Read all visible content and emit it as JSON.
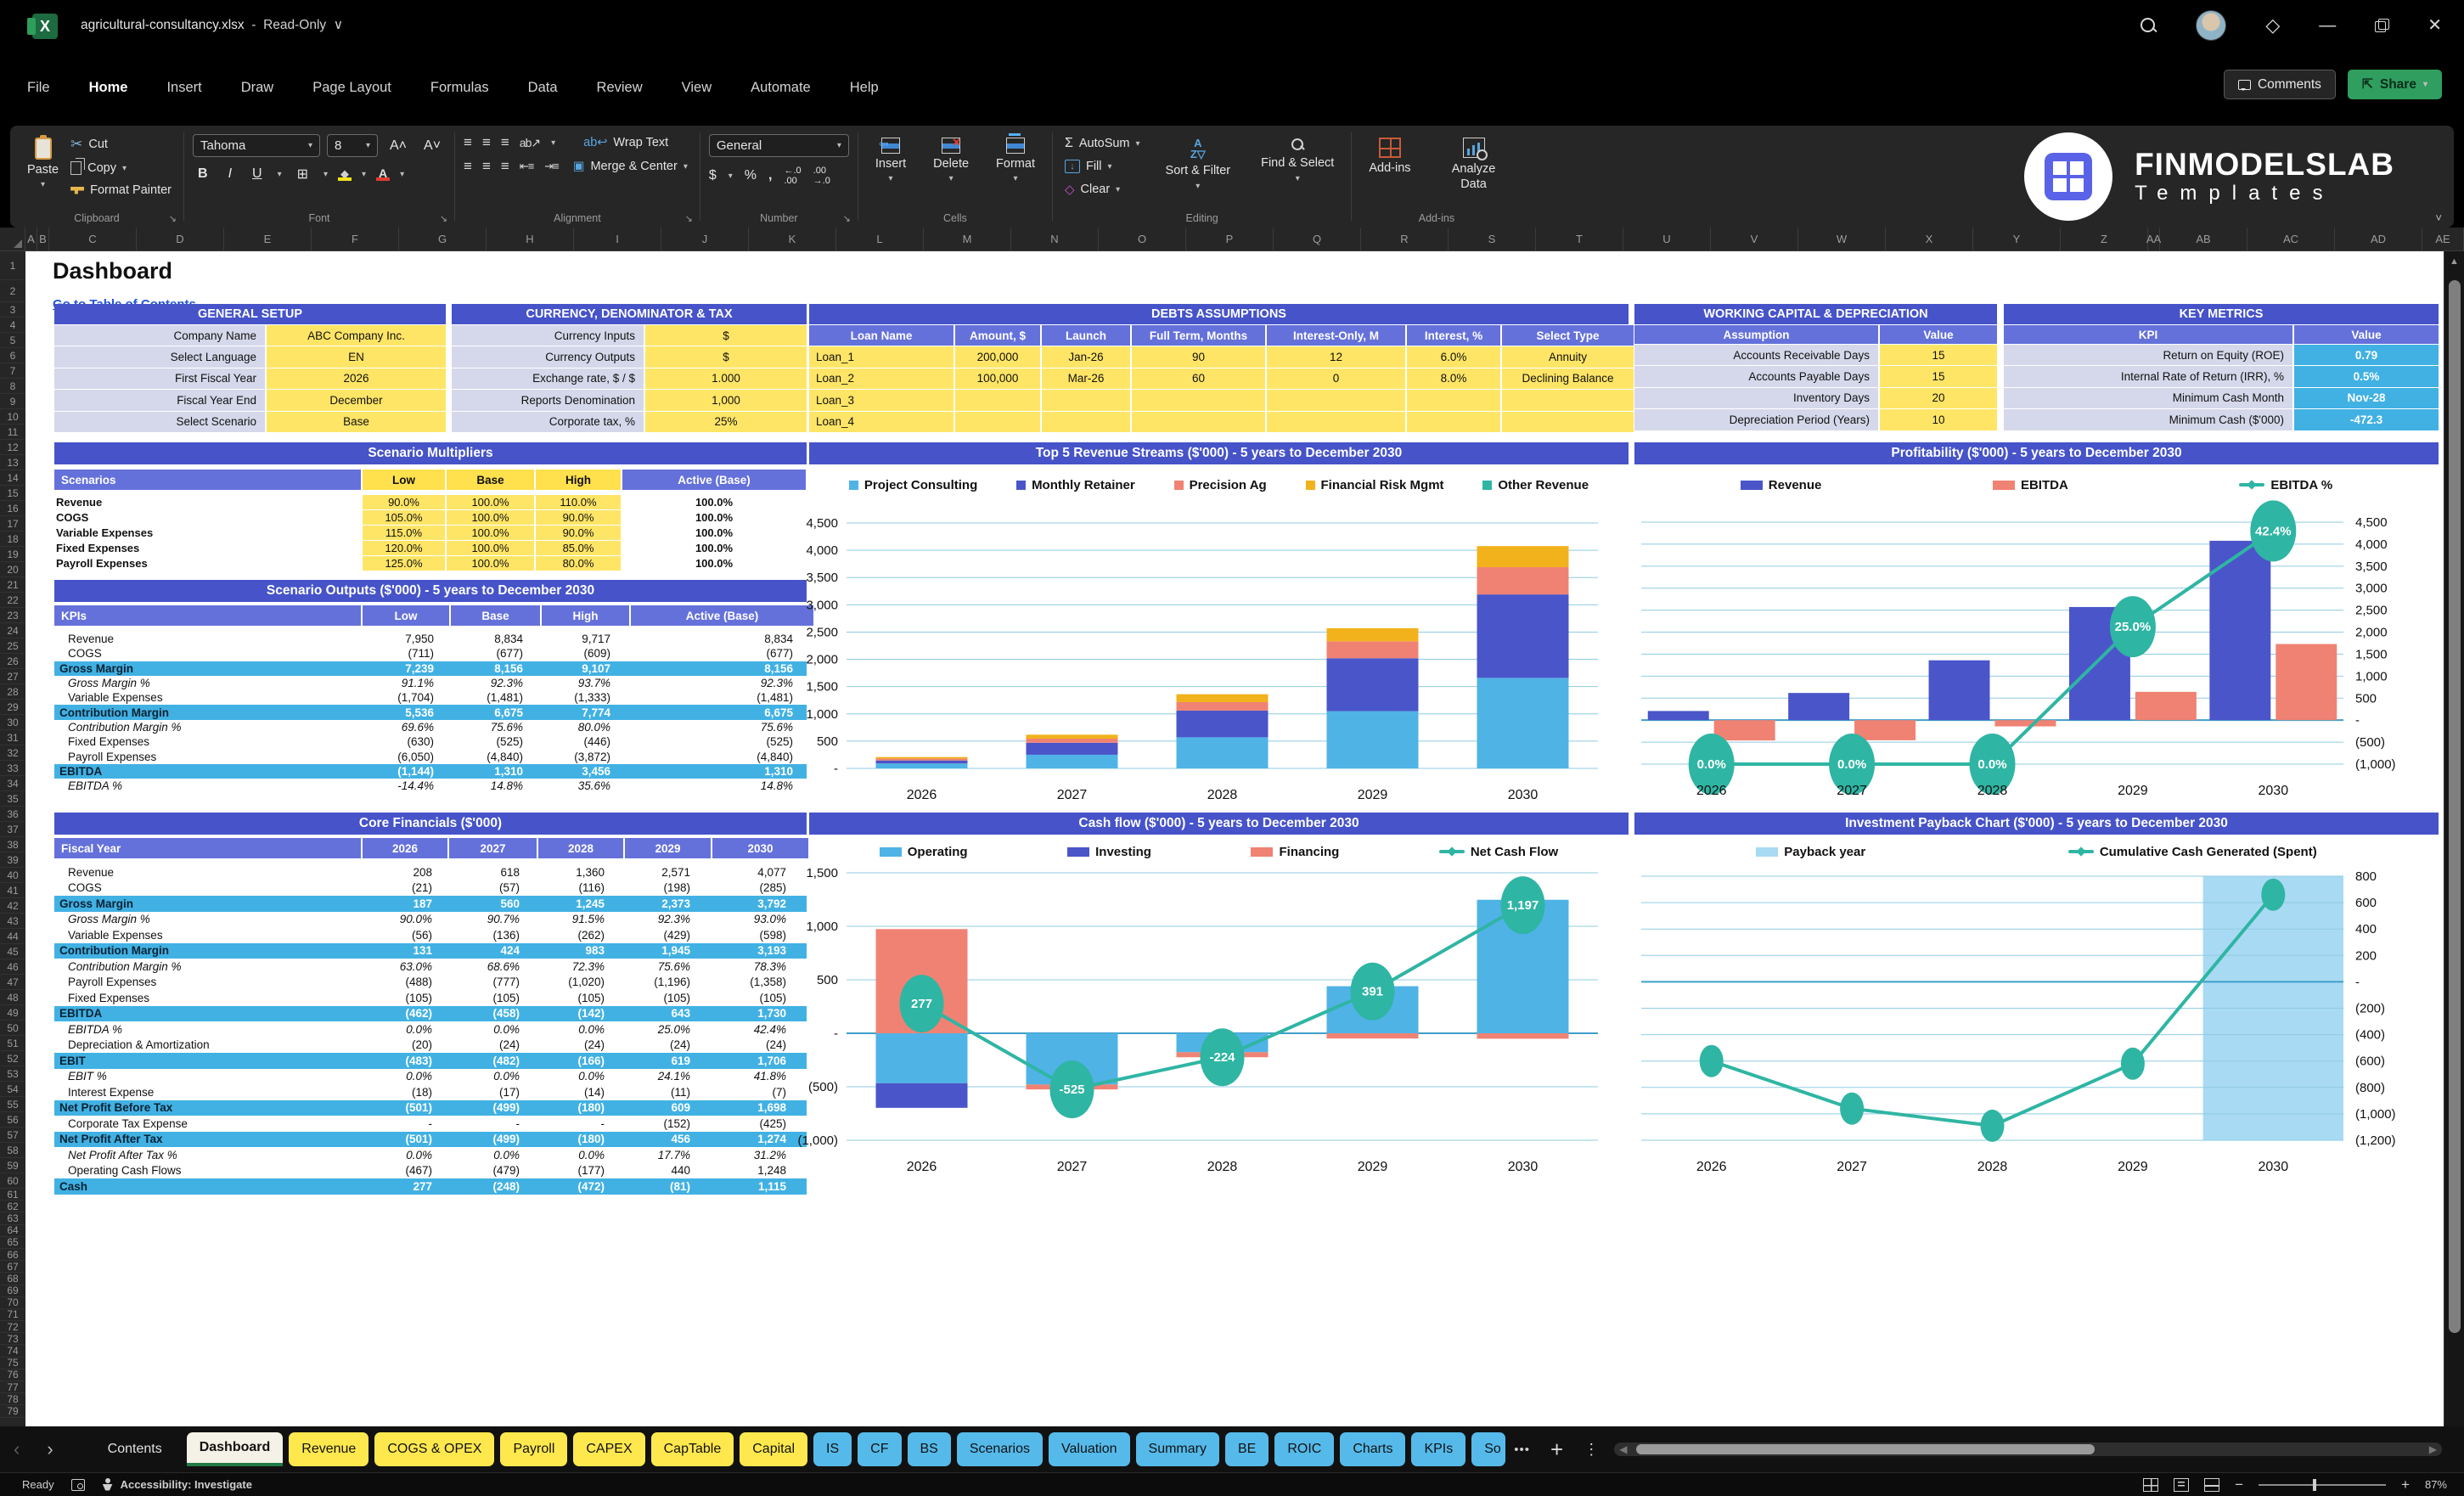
{
  "titlebar": {
    "filename": "agricultural-consultancy.xlsx",
    "mode": "Read-Only"
  },
  "menu": {
    "items": [
      "File",
      "Home",
      "Insert",
      "Draw",
      "Page Layout",
      "Formulas",
      "Data",
      "Review",
      "View",
      "Automate",
      "Help"
    ],
    "active": "Home"
  },
  "actions": {
    "comments": "Comments",
    "share": "Share"
  },
  "ribbon": {
    "clipboard": {
      "label": "Clipboard",
      "paste": "Paste",
      "cut": "Cut",
      "copy": "Copy",
      "format_painter": "Format Painter"
    },
    "font": {
      "label": "Font",
      "name": "Tahoma",
      "size": "8"
    },
    "alignment": {
      "label": "Alignment",
      "wrap_text": "Wrap Text",
      "merge_center": "Merge & Center"
    },
    "number": {
      "label": "Number",
      "format": "General"
    },
    "cells": {
      "label": "Cells",
      "insert": "Insert",
      "delete": "Delete",
      "format": "Format"
    },
    "editing": {
      "label": "Editing",
      "autosum": "AutoSum",
      "fill": "Fill",
      "clear": "Clear",
      "sort_filter": "Sort & Filter",
      "find_select": "Find & Select"
    },
    "addins": {
      "label": "Add-ins",
      "addins": "Add-ins",
      "analyze": "Analyze Data"
    }
  },
  "brand": {
    "name": "FINMODELSLAB",
    "sub": "Templates"
  },
  "sheet": {
    "title": "Dashboard",
    "link": "Go to Table of Contents",
    "row_count": 79,
    "columns": [
      "A",
      "B",
      "C",
      "D",
      "E",
      "F",
      "G",
      "H",
      "I",
      "J",
      "K",
      "L",
      "M",
      "N",
      "O",
      "P",
      "Q",
      "R",
      "S",
      "T",
      "U",
      "V",
      "W",
      "X",
      "Y",
      "Z",
      "AA",
      "AB",
      "AC",
      "AD",
      "AE"
    ]
  },
  "colors": {
    "accent_blue": "#4653C9",
    "header_blue": "#6571DA",
    "yellow": "#FFE566",
    "cyan": "#41B1E3",
    "teal": "#2FB5A3",
    "salmon": "#F08273",
    "gold": "#F2B21C",
    "light_blue": "#4FB3E6",
    "tab_yellow": "#FFE84D",
    "tab_blue": "#55BAEA",
    "share_green": "#2f9e5f"
  },
  "tables": {
    "general_setup": {
      "title": "GENERAL SETUP",
      "rows": [
        [
          "Company Name",
          "ABC Company Inc."
        ],
        [
          "Select Language",
          "EN"
        ],
        [
          "First Fiscal Year",
          "2026"
        ],
        [
          "Fiscal Year End",
          "December"
        ],
        [
          "Select Scenario",
          "Base"
        ]
      ]
    },
    "currency": {
      "title": "CURRENCY, DENOMINATOR & TAX",
      "rows": [
        [
          "Currency Inputs",
          "$"
        ],
        [
          "Currency Outputs",
          "$"
        ],
        [
          "Exchange rate, $ / $",
          "1.000"
        ],
        [
          "Reports Denomination",
          "1,000"
        ],
        [
          "Corporate tax, %",
          "25%"
        ]
      ]
    },
    "debts": {
      "title": "DEBTS ASSUMPTIONS",
      "headers": [
        "Loan Name",
        "Amount, $",
        "Launch",
        "Full Term, Months",
        "Interest-Only, M",
        "Interest, %",
        "Select Type"
      ],
      "rows": [
        [
          "Loan_1",
          "200,000",
          "Jan-26",
          "90",
          "12",
          "6.0%",
          "Annuity"
        ],
        [
          "Loan_2",
          "100,000",
          "Mar-26",
          "60",
          "0",
          "8.0%",
          "Declining Balance"
        ],
        [
          "Loan_3",
          "",
          "",
          "",
          "",
          "",
          ""
        ],
        [
          "Loan_4",
          "",
          "",
          "",
          "",
          "",
          ""
        ]
      ]
    },
    "working_capital": {
      "title": "WORKING CAPITAL & DEPRECIATION",
      "headers": [
        "Assumption",
        "Value"
      ],
      "rows": [
        [
          "Accounts Receivable Days",
          "15"
        ],
        [
          "Accounts Payable Days",
          "15"
        ],
        [
          "Inventory Days",
          "20"
        ],
        [
          "Depreciation Period (Years)",
          "10"
        ]
      ]
    },
    "key_metrics": {
      "title": "KEY METRICS",
      "headers": [
        "KPI",
        "Value"
      ],
      "rows": [
        [
          "Return on Equity (ROE)",
          "0.79"
        ],
        [
          "Internal Rate of Return (IRR), %",
          "0.5%"
        ],
        [
          "Minimum Cash Month",
          "Nov-28"
        ],
        [
          "Minimum Cash ($'000)",
          "-472.3"
        ]
      ]
    },
    "scenario_multipliers": {
      "title": "Scenario Multipliers",
      "headers": [
        "Scenarios",
        "Low",
        "Base",
        "High",
        "Active (Base)"
      ],
      "rows": [
        [
          "Revenue",
          "90.0%",
          "100.0%",
          "110.0%",
          "100.0%"
        ],
        [
          "COGS",
          "105.0%",
          "100.0%",
          "90.0%",
          "100.0%"
        ],
        [
          "Variable Expenses",
          "115.0%",
          "100.0%",
          "90.0%",
          "100.0%"
        ],
        [
          "Fixed Expenses",
          "120.0%",
          "100.0%",
          "85.0%",
          "100.0%"
        ],
        [
          "Payroll Expenses",
          "125.0%",
          "100.0%",
          "80.0%",
          "100.0%"
        ]
      ]
    },
    "scenario_outputs": {
      "title": "Scenario Outputs ($'000) - 5 years to December 2030",
      "headers": [
        "KPIs",
        "Low",
        "Base",
        "High",
        "Active (Base)"
      ],
      "rows": [
        {
          "label": "Revenue",
          "values": [
            "7,950",
            "8,834",
            "9,717",
            "8,834"
          ],
          "style": "plain"
        },
        {
          "label": "COGS",
          "values": [
            "(711)",
            "(677)",
            "(609)",
            "(677)"
          ],
          "style": "plain"
        },
        {
          "label": "Gross Margin",
          "values": [
            "7,239",
            "8,156",
            "9,107",
            "8,156"
          ],
          "style": "highlight"
        },
        {
          "label": "Gross Margin %",
          "values": [
            "91.1%",
            "92.3%",
            "93.7%",
            "92.3%"
          ],
          "style": "italic"
        },
        {
          "label": "Variable Expenses",
          "values": [
            "(1,704)",
            "(1,481)",
            "(1,333)",
            "(1,481)"
          ],
          "style": "plain"
        },
        {
          "label": "Contribution Margin",
          "values": [
            "5,536",
            "6,675",
            "7,774",
            "6,675"
          ],
          "style": "highlight"
        },
        {
          "label": "Contribution Margin %",
          "values": [
            "69.6%",
            "75.6%",
            "80.0%",
            "75.6%"
          ],
          "style": "italic"
        },
        {
          "label": "Fixed Expenses",
          "values": [
            "(630)",
            "(525)",
            "(446)",
            "(525)"
          ],
          "style": "plain"
        },
        {
          "label": "Payroll Expenses",
          "values": [
            "(6,050)",
            "(4,840)",
            "(3,872)",
            "(4,840)"
          ],
          "style": "plain"
        },
        {
          "label": "EBITDA",
          "values": [
            "(1,144)",
            "1,310",
            "3,456",
            "1,310"
          ],
          "style": "highlight"
        },
        {
          "label": "EBITDA %",
          "values": [
            "-14.4%",
            "14.8%",
            "35.6%",
            "14.8%"
          ],
          "style": "italic"
        }
      ]
    },
    "core_financials": {
      "title": "Core Financials ($'000)",
      "headers": [
        "Fiscal Year",
        "2026",
        "2027",
        "2028",
        "2029",
        "2030"
      ],
      "rows": [
        {
          "label": "Revenue",
          "values": [
            "208",
            "618",
            "1,360",
            "2,571",
            "4,077"
          ],
          "style": "plain"
        },
        {
          "label": "COGS",
          "values": [
            "(21)",
            "(57)",
            "(116)",
            "(198)",
            "(285)"
          ],
          "style": "plain"
        },
        {
          "label": "Gross Margin",
          "values": [
            "187",
            "560",
            "1,245",
            "2,373",
            "3,792"
          ],
          "style": "highlight"
        },
        {
          "label": "Gross Margin %",
          "values": [
            "90.0%",
            "90.7%",
            "91.5%",
            "92.3%",
            "93.0%"
          ],
          "style": "italic"
        },
        {
          "label": "Variable Expenses",
          "values": [
            "(56)",
            "(136)",
            "(262)",
            "(429)",
            "(598)"
          ],
          "style": "plain"
        },
        {
          "label": "Contribution Margin",
          "values": [
            "131",
            "424",
            "983",
            "1,945",
            "3,193"
          ],
          "style": "highlight"
        },
        {
          "label": "Contribution Margin %",
          "values": [
            "63.0%",
            "68.6%",
            "72.3%",
            "75.6%",
            "78.3%"
          ],
          "style": "italic"
        },
        {
          "label": "Payroll Expenses",
          "values": [
            "(488)",
            "(777)",
            "(1,020)",
            "(1,196)",
            "(1,358)"
          ],
          "style": "plain"
        },
        {
          "label": "Fixed Expenses",
          "values": [
            "(105)",
            "(105)",
            "(105)",
            "(105)",
            "(105)"
          ],
          "style": "plain"
        },
        {
          "label": "EBITDA",
          "values": [
            "(462)",
            "(458)",
            "(142)",
            "643",
            "1,730"
          ],
          "style": "highlight"
        },
        {
          "label": "EBITDA %",
          "values": [
            "0.0%",
            "0.0%",
            "0.0%",
            "25.0%",
            "42.4%"
          ],
          "style": "italic"
        },
        {
          "label": "Depreciation & Amortization",
          "values": [
            "(20)",
            "(24)",
            "(24)",
            "(24)",
            "(24)"
          ],
          "style": "plain"
        },
        {
          "label": "EBIT",
          "values": [
            "(483)",
            "(482)",
            "(166)",
            "619",
            "1,706"
          ],
          "style": "highlight"
        },
        {
          "label": "EBIT %",
          "values": [
            "0.0%",
            "0.0%",
            "0.0%",
            "24.1%",
            "41.8%"
          ],
          "style": "italic"
        },
        {
          "label": "Interest Expense",
          "values": [
            "(18)",
            "(17)",
            "(14)",
            "(11)",
            "(7)"
          ],
          "style": "plain"
        },
        {
          "label": "Net Profit Before Tax",
          "values": [
            "(501)",
            "(499)",
            "(180)",
            "609",
            "1,698"
          ],
          "style": "highlight"
        },
        {
          "label": "Corporate Tax Expense",
          "values": [
            "-",
            "-",
            "-",
            "(152)",
            "(425)"
          ],
          "style": "plain"
        },
        {
          "label": "Net Profit After Tax",
          "values": [
            "(501)",
            "(499)",
            "(180)",
            "456",
            "1,274"
          ],
          "style": "highlight"
        },
        {
          "label": "Net Profit After Tax %",
          "values": [
            "0.0%",
            "0.0%",
            "0.0%",
            "17.7%",
            "31.2%"
          ],
          "style": "italic"
        },
        {
          "label": "Operating Cash Flows",
          "values": [
            "(467)",
            "(479)",
            "(177)",
            "440",
            "1,248"
          ],
          "style": "plain"
        },
        {
          "label": "Cash",
          "values": [
            "277",
            "(248)",
            "(472)",
            "(81)",
            "1,115"
          ],
          "style": "highlight"
        }
      ]
    }
  },
  "chart_data": [
    {
      "id": "revenue_streams",
      "type": "bar",
      "title": "Top 5 Revenue Streams ($'000) - 5 years to December 2030",
      "categories": [
        "2026",
        "2027",
        "2028",
        "2029",
        "2030"
      ],
      "series": [
        {
          "name": "Project Consulting",
          "color": "#4FB3E6",
          "values": [
            90,
            250,
            570,
            1050,
            1660
          ]
        },
        {
          "name": "Monthly Retainer",
          "color": "#4A55C9",
          "values": [
            55,
            220,
            490,
            970,
            1530
          ]
        },
        {
          "name": "Precision Ag",
          "color": "#F08273",
          "values": [
            35,
            75,
            155,
            310,
            500
          ]
        },
        {
          "name": "Financial Risk Mgmt",
          "color": "#F2B21C",
          "values": [
            28,
            73,
            145,
            241,
            387
          ]
        },
        {
          "name": "Other Revenue",
          "color": "#2FB5A3",
          "values": [
            0,
            0,
            0,
            0,
            0
          ]
        }
      ],
      "stacked": true,
      "ylim": [
        0,
        4500
      ],
      "axis_side": "left",
      "yticklabels": [
        "4,500",
        "4,000",
        "3,500",
        "3,000",
        "2,500",
        "2,000",
        "1,500",
        "1,000",
        "500",
        "-"
      ]
    },
    {
      "id": "profitability",
      "type": "bar",
      "title": "Profitability ($'000) - 5 years to December 2030",
      "categories": [
        "2026",
        "2027",
        "2028",
        "2029",
        "2030"
      ],
      "series": [
        {
          "name": "Revenue",
          "color": "#4A55C9",
          "values": [
            208,
            618,
            1360,
            2571,
            4077
          ]
        },
        {
          "name": "EBITDA",
          "color": "#F08273",
          "values": [
            -462,
            -458,
            -142,
            643,
            1730
          ]
        }
      ],
      "stacked": false,
      "ylim": [
        -1000,
        4500
      ],
      "axis_side": "right",
      "yticklabels": [
        "4,500",
        "4,000",
        "3,500",
        "3,000",
        "2,500",
        "2,000",
        "1,500",
        "1,000",
        "500",
        "-",
        "(500)",
        "(1,000)"
      ],
      "line": {
        "name": "EBITDA %",
        "color": "#2FB5A3",
        "values": [
          0,
          0,
          0,
          25,
          42.4
        ],
        "labels": [
          "0.0%",
          "0.0%",
          "0.0%",
          "25.0%",
          "42.4%"
        ],
        "axis": [
          0,
          44
        ]
      }
    },
    {
      "id": "cashflow",
      "type": "bar",
      "title": "Cash flow ($'000) - 5 years to December 2030",
      "categories": [
        "2026",
        "2027",
        "2028",
        "2029",
        "2030"
      ],
      "series": [
        {
          "name": "Operating",
          "color": "#4FB3E6",
          "values": [
            -467,
            -479,
            -177,
            440,
            1248
          ]
        },
        {
          "name": "Investing",
          "color": "#4A55C9",
          "values": [
            -230,
            0,
            0,
            0,
            0
          ]
        },
        {
          "name": "Financing",
          "color": "#F08273",
          "values": [
            974,
            -46,
            -47,
            -49,
            -51
          ]
        }
      ],
      "stacked": true,
      "ylim": [
        -1000,
        1500
      ],
      "axis_side": "left",
      "yticklabels": [
        "1,500",
        "1,000",
        "500",
        "-",
        "(500)",
        "(1,000)"
      ],
      "line": {
        "name": "Net Cash Flow",
        "color": "#2FB5A3",
        "values": [
          277,
          -525,
          -224,
          391,
          1197
        ],
        "labels": [
          "277",
          "-525",
          "-224",
          "391",
          "1,197"
        ]
      }
    },
    {
      "id": "payback",
      "type": "line",
      "title": "Investment Payback Chart ($'000) - 5 years to December 2030",
      "categories": [
        "2026",
        "2027",
        "2028",
        "2029",
        "2030"
      ],
      "band": {
        "name": "Payback year",
        "color": "#A9DAF3"
      },
      "line": {
        "name": "Cumulative Cash Generated (Spent)",
        "color": "#2FB5A3",
        "values": [
          -600,
          -960,
          -1090,
          -620,
          660
        ],
        "labels": []
      },
      "ylim": [
        -1200,
        800
      ],
      "axis_side": "right",
      "yticklabels": [
        "800",
        "600",
        "400",
        "200",
        "-",
        "(200)",
        "(400)",
        "(600)",
        "(800)",
        "(1,000)",
        "(1,200)"
      ]
    }
  ],
  "tabs": {
    "items": [
      {
        "label": "Contents",
        "type": "plain"
      },
      {
        "label": "Dashboard",
        "type": "active"
      },
      {
        "label": "Revenue",
        "type": "yellow"
      },
      {
        "label": "COGS & OPEX",
        "type": "yellow"
      },
      {
        "label": "Payroll",
        "type": "yellow"
      },
      {
        "label": "CAPEX",
        "type": "yellow"
      },
      {
        "label": "CapTable",
        "type": "yellow"
      },
      {
        "label": "Capital",
        "type": "yellow"
      },
      {
        "label": "IS",
        "type": "blue"
      },
      {
        "label": "CF",
        "type": "blue"
      },
      {
        "label": "BS",
        "type": "blue"
      },
      {
        "label": "Scenarios",
        "type": "blue"
      },
      {
        "label": "Valuation",
        "type": "blue"
      },
      {
        "label": "Summary",
        "type": "blue"
      },
      {
        "label": "BE",
        "type": "blue"
      },
      {
        "label": "ROIC",
        "type": "blue"
      },
      {
        "label": "Charts",
        "type": "blue"
      },
      {
        "label": "KPIs",
        "type": "blue"
      },
      {
        "label": "So",
        "type": "blue",
        "clipped": true
      }
    ],
    "more": "•••"
  },
  "statusbar": {
    "ready": "Ready",
    "accessibility": "Accessibility: Investigate",
    "zoom": "87%"
  }
}
